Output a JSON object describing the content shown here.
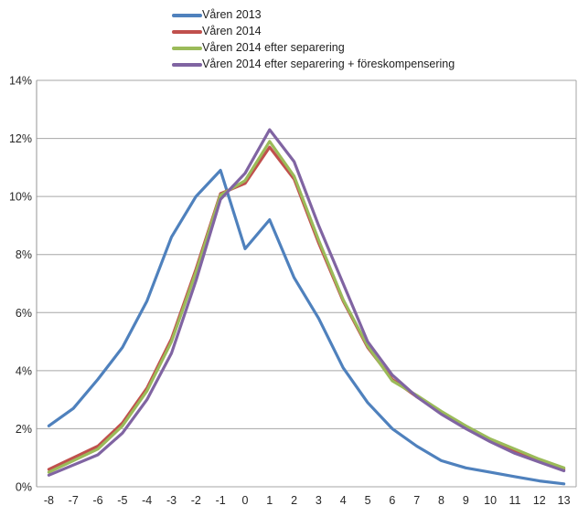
{
  "colors": {
    "background": "#FFFFFF",
    "gridline": "#A6A6A6",
    "plot_border": "#969696",
    "axis_text": "#262626",
    "series_blue": "#4F81BD",
    "series_red": "#C0504D",
    "series_green": "#9BBB59",
    "series_purple": "#8064A2"
  },
  "chart_data": {
    "type": "line",
    "title": "",
    "xlabel": "",
    "ylabel": "",
    "grid": true,
    "legend_position": "top",
    "ylim": [
      0,
      14
    ],
    "y_tick_step": 2,
    "y_tick_labels": [
      "0%",
      "2%",
      "4%",
      "6%",
      "8%",
      "10%",
      "12%",
      "14%"
    ],
    "x": [
      -8,
      -7,
      -6,
      -5,
      -4,
      -3,
      -2,
      -1,
      0,
      1,
      2,
      3,
      4,
      5,
      6,
      7,
      8,
      9,
      10,
      11,
      12,
      13
    ],
    "x_labels": [
      "-8",
      "-7",
      "-6",
      "-5",
      "-4",
      "-3",
      "-2",
      "-1",
      "0",
      "1",
      "2",
      "3",
      "4",
      "5",
      "6",
      "7",
      "8",
      "9",
      "10",
      "11",
      "12",
      "13"
    ],
    "series": [
      {
        "name": "Våren 2013",
        "color": "#4F81BD",
        "values": [
          2.1,
          2.7,
          3.7,
          4.8,
          6.4,
          8.6,
          10.0,
          10.9,
          8.2,
          9.2,
          7.2,
          5.8,
          4.1,
          2.9,
          2.0,
          1.4,
          0.9,
          0.65,
          0.5,
          0.35,
          0.2,
          0.1
        ]
      },
      {
        "name": "Våren 2014",
        "color": "#C0504D",
        "values": [
          0.6,
          1.0,
          1.4,
          2.2,
          3.4,
          5.1,
          7.5,
          10.1,
          10.45,
          11.7,
          10.6,
          8.4,
          6.4,
          4.8,
          3.7,
          3.1,
          2.55,
          2.05,
          1.6,
          1.25,
          0.9,
          0.6
        ]
      },
      {
        "name": "Våren 2014 efter separering",
        "color": "#9BBB59",
        "values": [
          0.5,
          0.9,
          1.3,
          2.1,
          3.3,
          5.0,
          7.4,
          10.05,
          10.55,
          11.9,
          10.7,
          8.5,
          6.45,
          4.85,
          3.65,
          3.15,
          2.6,
          2.1,
          1.65,
          1.3,
          0.95,
          0.65
        ]
      },
      {
        "name": "Våren 2014 efter separering + föreskompensering",
        "color": "#8064A2",
        "values": [
          0.4,
          0.75,
          1.1,
          1.85,
          3.0,
          4.6,
          7.1,
          9.9,
          10.8,
          12.3,
          11.2,
          9.0,
          7.0,
          5.0,
          3.85,
          3.1,
          2.5,
          2.0,
          1.55,
          1.15,
          0.85,
          0.55
        ]
      }
    ]
  }
}
